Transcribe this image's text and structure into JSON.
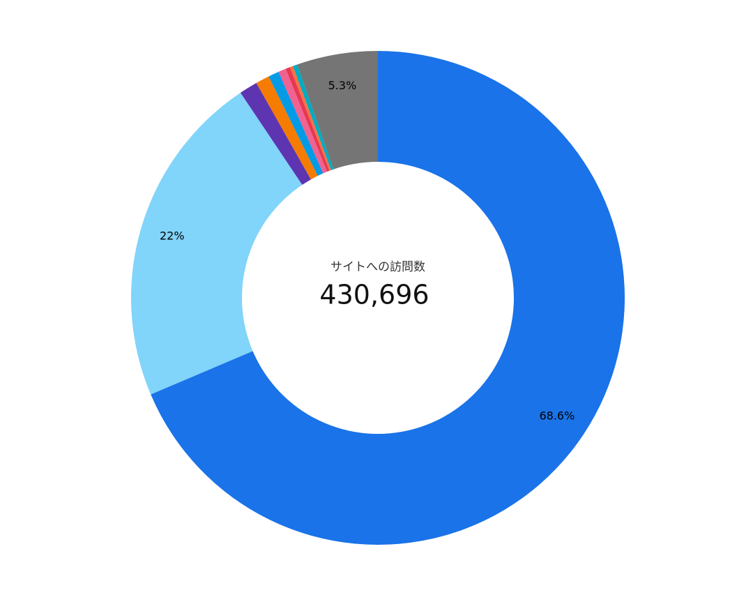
{
  "chart_data": {
    "type": "donut",
    "center_label": "サイトへの訪問数",
    "center_value": "430,696",
    "values": [
      68.6,
      22,
      1.2,
      0.9,
      0.7,
      0.5,
      0.3,
      0.2,
      0.3,
      5.3
    ],
    "value_labels": [
      "68.6%",
      "22%",
      null,
      null,
      null,
      null,
      null,
      null,
      null,
      "5.3%"
    ],
    "colors": [
      "#1a73e8",
      "#81d4fa",
      "#5e35b1",
      "#f57c00",
      "#039be5",
      "#f06292",
      "#e53950",
      "#ff7043",
      "#00acc1",
      "#757575"
    ]
  }
}
